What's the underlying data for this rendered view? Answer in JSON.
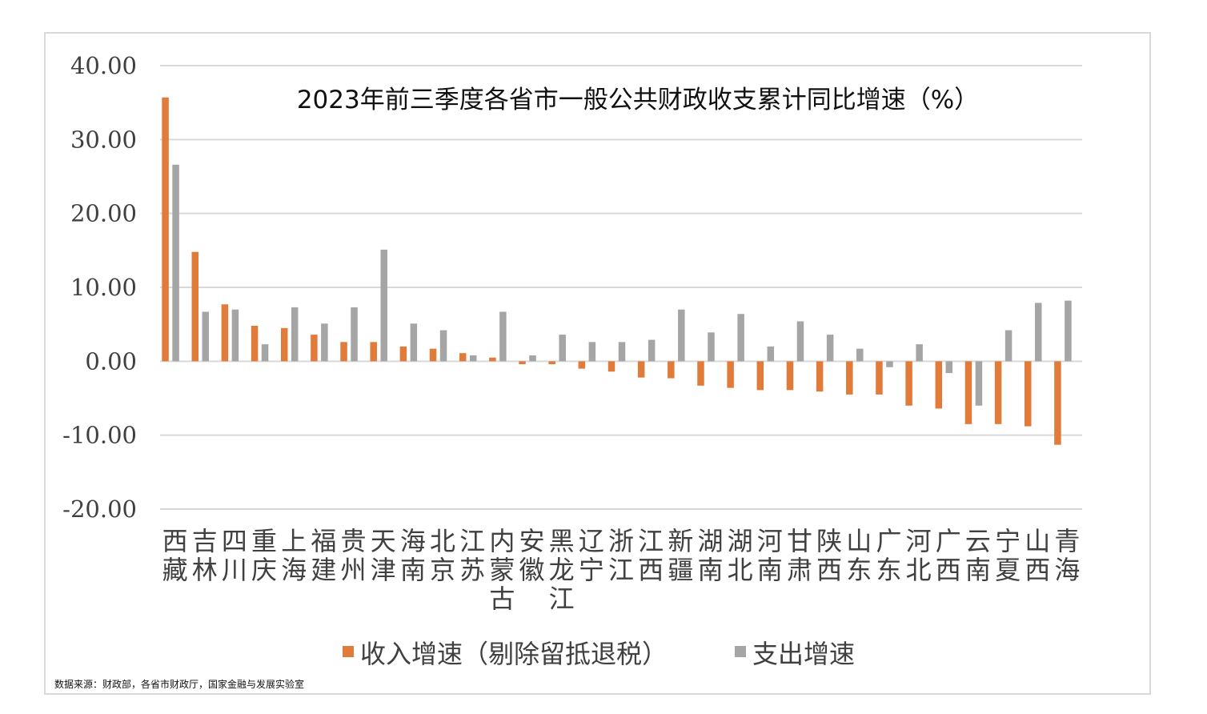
{
  "chart_data": {
    "type": "bar",
    "title": "2023年前三季度各省市一般公共财政收支累计同比增速（%）",
    "categories": [
      "西藏",
      "吉林",
      "四川",
      "重庆",
      "上海",
      "福建",
      "贵州",
      "天津",
      "海南",
      "北京",
      "江苏",
      "内蒙古",
      "安徽",
      "黑龙江",
      "辽宁",
      "浙江",
      "江西",
      "新疆",
      "湖南",
      "湖北",
      "河南",
      "甘肃",
      "陕西",
      "山东",
      "广东",
      "河北",
      "广西",
      "云南",
      "宁夏",
      "山西",
      "青海"
    ],
    "series": [
      {
        "name": "收入增速（剔除留抵退税）",
        "color": "#e07b39",
        "values": [
          35.7,
          14.8,
          7.7,
          4.8,
          4.5,
          3.6,
          2.6,
          2.6,
          2.0,
          1.7,
          1.1,
          0.5,
          -0.4,
          -0.4,
          -1.0,
          -1.4,
          -2.2,
          -2.3,
          -3.3,
          -3.6,
          -3.9,
          -3.9,
          -4.1,
          -4.5,
          -4.5,
          -6.0,
          -6.4,
          -8.5,
          -8.5,
          -8.8,
          -11.3
        ]
      },
      {
        "name": "支出增速",
        "color": "#a5a5a5",
        "values": [
          26.6,
          6.7,
          7.0,
          2.3,
          7.3,
          5.1,
          7.3,
          15.1,
          5.1,
          4.2,
          0.8,
          6.7,
          0.8,
          3.6,
          2.6,
          2.6,
          2.9,
          7.0,
          3.9,
          6.4,
          2.0,
          5.4,
          3.6,
          1.7,
          -0.8,
          2.3,
          -1.6,
          -6.0,
          4.2,
          7.9,
          8.2
        ]
      }
    ],
    "yticks": [
      "40.00",
      "30.00",
      "20.00",
      "10.00",
      "0.00",
      "-10.00",
      "-20.00"
    ],
    "ylim": [
      -20,
      40
    ],
    "grid": true,
    "legend_position": "bottom"
  },
  "source_note": "数据来源：财政部，各省市财政厅，国家金融与发展实验室"
}
